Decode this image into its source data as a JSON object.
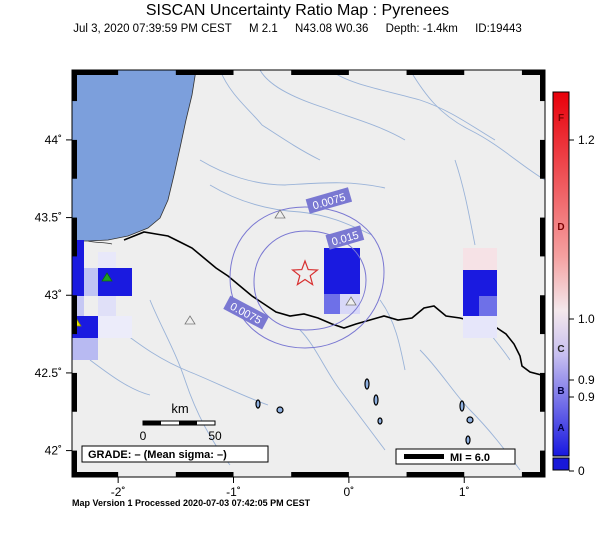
{
  "title": "SISCAN Uncertainty Ratio Map : Pyrenees",
  "subtitle": {
    "datetime": "Jul  3, 2020 07:39:59 PM CEST",
    "magnitude": "M 2.1",
    "location": "N43.08 W0.36",
    "depth": "Depth: -1.4km",
    "event_id": "ID:19443"
  },
  "axes": {
    "lon_ticks": [
      {
        "value": -2,
        "label": "-2˚"
      },
      {
        "value": -1,
        "label": "-1˚"
      },
      {
        "value": 0,
        "label": "0˚"
      },
      {
        "value": 1,
        "label": "1˚"
      }
    ],
    "lat_ticks": [
      {
        "value": 44,
        "label": "44˚"
      },
      {
        "value": 43.5,
        "label": "43.5˚"
      },
      {
        "value": 43,
        "label": "43˚"
      },
      {
        "value": 42.5,
        "label": "42.5˚"
      },
      {
        "value": 42,
        "label": "42˚"
      }
    ],
    "lon_range": [
      -2.4,
      1.7
    ],
    "lat_range": [
      41.83,
      44.45
    ]
  },
  "contours": [
    {
      "label": "0.0075"
    },
    {
      "label": "0.015"
    },
    {
      "label": "0.0075"
    }
  ],
  "scale_bar": {
    "unit": "km",
    "start_label": "0",
    "end_label": "50"
  },
  "grade_box": "GRADE: – (Mean sigma: –)",
  "mi_box": "MI = 6.0",
  "colorbar": {
    "grades": [
      "F",
      "D",
      "C",
      "B",
      "A"
    ],
    "values": [
      "1.2",
      "1.0",
      "0.9",
      "0.9",
      "0"
    ]
  },
  "colors": {
    "sea": "#7c9fdc",
    "land": "#eeeeee",
    "river": "#9ab3d8",
    "contour": "#7a78d2",
    "border": "#000000",
    "epicenter": "#d83030",
    "cell_blue": "#1a1ae0",
    "station_green": "#20a020",
    "station_yellow": "#e8e800"
  },
  "footer": "Map Version 1 Processed 2020-07-03 07:42:05 PM CEST"
}
